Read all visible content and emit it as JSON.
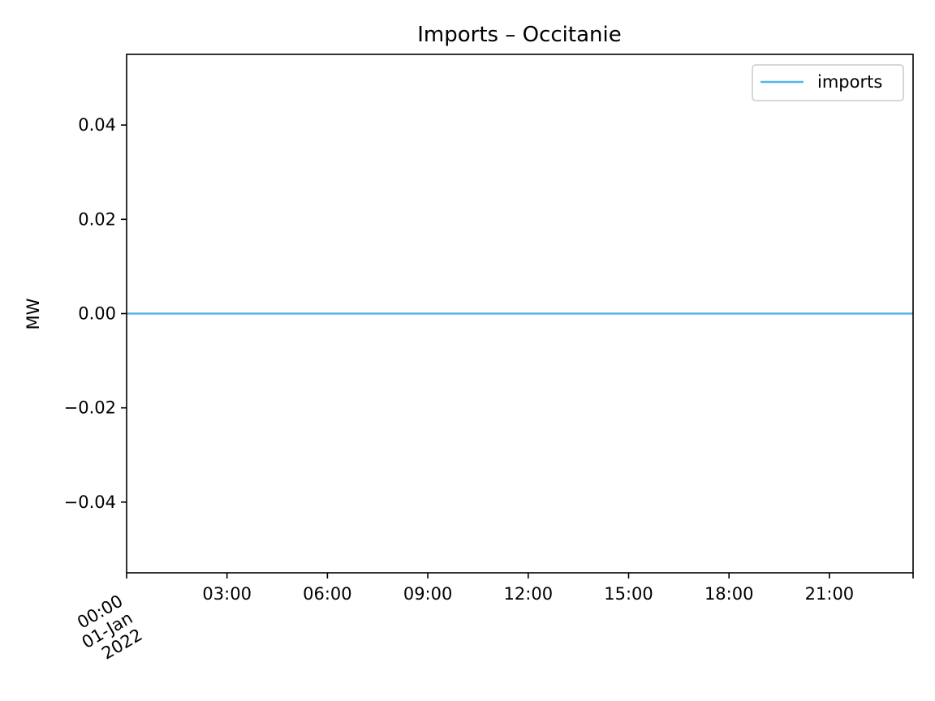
{
  "chart_data": {
    "type": "line",
    "title": "Imports – Occitanie",
    "xlabel": "",
    "ylabel": "MW",
    "ylim": [
      -0.055,
      0.055
    ],
    "xlim": [
      "2022-01-01 00:00",
      "2022-01-01 23:30"
    ],
    "y_ticks": [
      {
        "value": 0.04,
        "label": "0.04"
      },
      {
        "value": 0.02,
        "label": "0.02"
      },
      {
        "value": 0.0,
        "label": "0.00"
      },
      {
        "value": -0.02,
        "label": "−0.02"
      },
      {
        "value": -0.04,
        "label": "−0.04"
      }
    ],
    "x_ticks": [
      {
        "value": "2022-01-01 00:00",
        "label": [
          "00:00",
          "01-Jan",
          "2022"
        ]
      },
      {
        "value": "2022-01-01 03:00",
        "label": [
          "03:00"
        ]
      },
      {
        "value": "2022-01-01 06:00",
        "label": [
          "06:00"
        ]
      },
      {
        "value": "2022-01-01 09:00",
        "label": [
          "09:00"
        ]
      },
      {
        "value": "2022-01-01 12:00",
        "label": [
          "12:00"
        ]
      },
      {
        "value": "2022-01-01 15:00",
        "label": [
          "15:00"
        ]
      },
      {
        "value": "2022-01-01 18:00",
        "label": [
          "18:00"
        ]
      },
      {
        "value": "2022-01-01 21:00",
        "label": [
          "21:00"
        ]
      },
      {
        "value": "2022-01-01 23:30",
        "label": []
      }
    ],
    "series": [
      {
        "name": "imports",
        "color": "#56b4e9",
        "x": [
          "2022-01-01 00:00",
          "2022-01-01 23:30"
        ],
        "y": [
          0.0,
          0.0
        ]
      }
    ],
    "legend": "top-right",
    "grid": false
  }
}
